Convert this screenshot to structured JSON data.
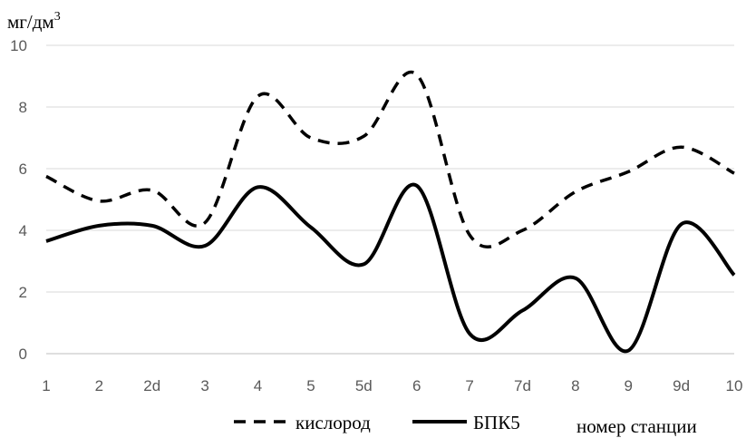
{
  "chart_data": {
    "type": "line",
    "ylabel": "мг/дм",
    "ylabel_sup": "3",
    "xlabel": "номер станции",
    "categories": [
      "1",
      "2",
      "2d",
      "3",
      "4",
      "5",
      "5d",
      "6",
      "7",
      "7d",
      "8",
      "9",
      "9d",
      "10"
    ],
    "yticks": [
      "0",
      "2",
      "4",
      "6",
      "8",
      "10"
    ],
    "ylim": [
      0,
      10
    ],
    "grid": true,
    "legend_position": "bottom",
    "series": [
      {
        "name": "кислород",
        "style": "dashed",
        "color": "#000000",
        "values": [
          5.75,
          4.95,
          5.3,
          4.25,
          8.35,
          7.0,
          7.05,
          9.05,
          3.85,
          4.0,
          5.25,
          5.9,
          6.7,
          5.85
        ]
      },
      {
        "name": "БПК5",
        "style": "solid",
        "color": "#000000",
        "values": [
          3.65,
          4.15,
          4.15,
          3.5,
          5.4,
          4.1,
          2.9,
          5.45,
          0.65,
          1.4,
          2.45,
          0.1,
          4.2,
          2.55
        ]
      }
    ]
  }
}
